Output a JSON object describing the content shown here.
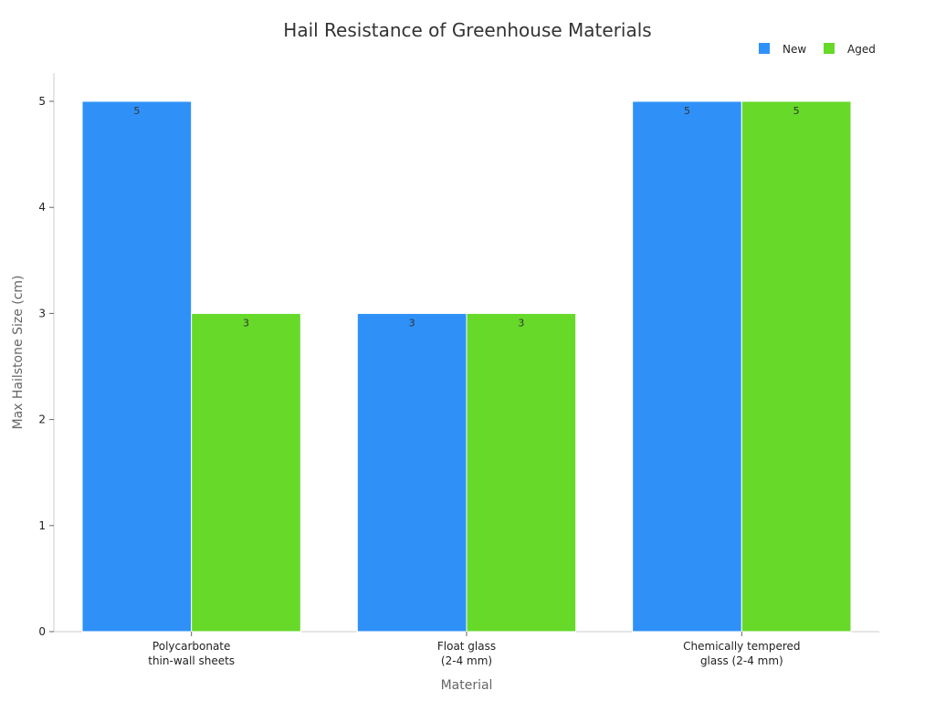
{
  "chart_data": {
    "type": "bar",
    "title": "Hail Resistance of Greenhouse Materials",
    "xlabel": "Material",
    "ylabel": "Max Hailstone Size (cm)",
    "categories": [
      [
        "Polycarbonate",
        "thin-wall sheets"
      ],
      [
        "Float glass",
        "(2-4 mm)"
      ],
      [
        "Chemically tempered",
        "glass (2-4 mm)"
      ]
    ],
    "series": [
      {
        "name": "New",
        "color": "#2f91f7",
        "values": [
          5,
          3,
          5
        ]
      },
      {
        "name": "Aged",
        "color": "#66d929",
        "values": [
          3,
          3,
          5
        ]
      }
    ],
    "ylim": [
      0,
      5
    ],
    "yticks": [
      "0",
      "1",
      "2",
      "3",
      "4",
      "5"
    ],
    "grid": false,
    "legend_position": "top-right",
    "data_labels": true
  }
}
